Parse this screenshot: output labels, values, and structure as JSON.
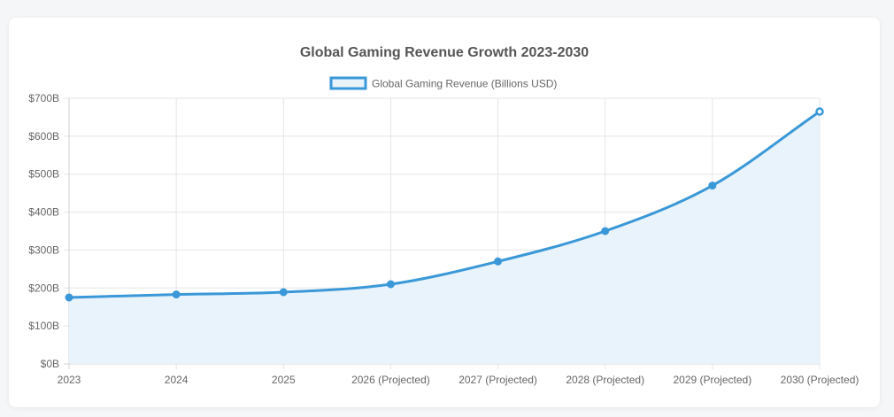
{
  "chart_data": {
    "type": "line",
    "title": "Global Gaming Revenue Growth 2023-2030",
    "legend": {
      "position": "top",
      "label": "Global Gaming Revenue (Billions USD)"
    },
    "categories": [
      "2023",
      "2024",
      "2025",
      "2026 (Projected)",
      "2027 (Projected)",
      "2028 (Projected)",
      "2029 (Projected)",
      "2030 (Projected)"
    ],
    "series": [
      {
        "name": "Global Gaming Revenue (Billions USD)",
        "values": [
          175,
          183,
          189,
          210,
          270,
          350,
          470,
          665
        ],
        "filled": true
      }
    ],
    "ylim": [
      0,
      700
    ],
    "yticks": [
      0,
      100,
      200,
      300,
      400,
      500,
      600,
      700
    ],
    "ytick_labels": [
      "$0B",
      "$100B",
      "$200B",
      "$300B",
      "$400B",
      "$500B",
      "$600B",
      "$700B"
    ],
    "xlabel": "",
    "ylabel": "",
    "grid": true,
    "colors": {
      "line": "#3a98d8",
      "fill": "#e8f3fb",
      "grid": "#e5e5e5",
      "axis": "#d0d0d0"
    }
  }
}
